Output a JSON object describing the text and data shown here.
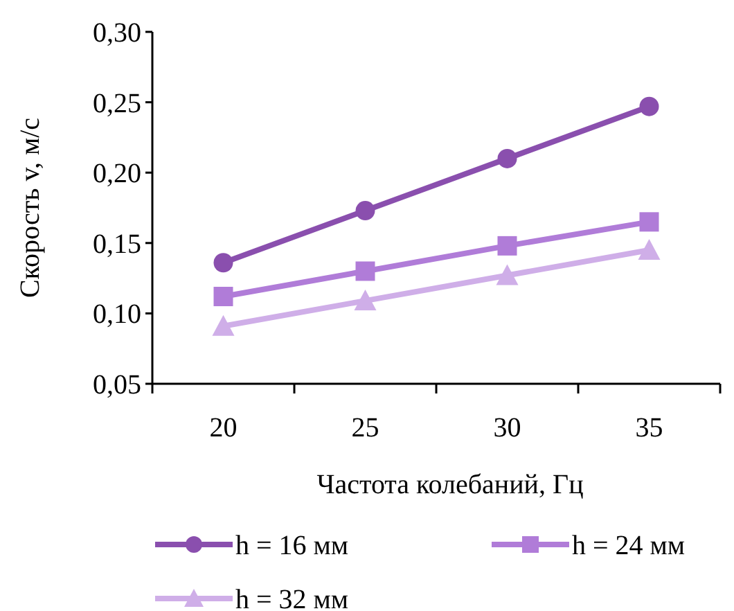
{
  "chart_data": {
    "type": "line",
    "xlabel": "Частота колебаний, Гц",
    "ylabel": "Скорость v, м/с",
    "categories": [
      "20",
      "25",
      "30",
      "35"
    ],
    "series": [
      {
        "name": "h = 16 мм",
        "color": "#8a4fae",
        "marker": "circle",
        "values": [
          0.136,
          0.173,
          0.21,
          0.247
        ]
      },
      {
        "name": "h = 24 мм",
        "color": "#b07cd8",
        "marker": "square",
        "values": [
          0.112,
          0.13,
          0.148,
          0.165
        ]
      },
      {
        "name": "h = 32 мм",
        "color": "#cfaee8",
        "marker": "triangle",
        "values": [
          0.091,
          0.109,
          0.127,
          0.145
        ]
      }
    ],
    "ylim": [
      0.05,
      0.3
    ],
    "yticks": [
      {
        "value": 0.05,
        "label": "0,05"
      },
      {
        "value": 0.1,
        "label": "0,10"
      },
      {
        "value": 0.15,
        "label": "0,15"
      },
      {
        "value": 0.2,
        "label": "0,20"
      },
      {
        "value": 0.25,
        "label": "0,25"
      },
      {
        "value": 0.3,
        "label": "0,30"
      }
    ],
    "grid": false,
    "legend": "bottom",
    "line_style": "solid"
  }
}
